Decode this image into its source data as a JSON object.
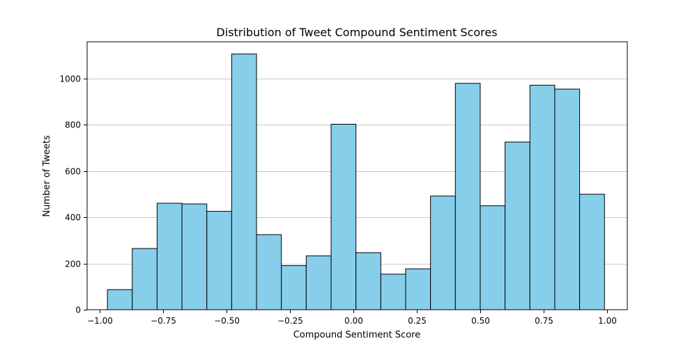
{
  "chart_data": {
    "type": "bar",
    "title": "Distribution of Tweet Compound Sentiment Scores",
    "xlabel": "Compound Sentiment Score",
    "ylabel": "Number of Tweets",
    "xlim": [
      -1.05,
      1.08
    ],
    "ylim": [
      0,
      1160
    ],
    "grid": "y",
    "bar_color": "#87ceeb",
    "edge_color": "#000000",
    "bin_edges": [
      -0.97,
      -0.872,
      -0.774,
      -0.676,
      -0.578,
      -0.48,
      -0.382,
      -0.284,
      -0.186,
      -0.088,
      0.01,
      0.108,
      0.206,
      0.304,
      0.402,
      0.5,
      0.598,
      0.696,
      0.794,
      0.892,
      0.99
    ],
    "values": [
      87,
      265,
      461,
      458,
      426,
      1107,
      325,
      191,
      233,
      803,
      247,
      154,
      177,
      492,
      980,
      450,
      726,
      972,
      955,
      500
    ],
    "xticks": [
      {
        "value": -1.0,
        "label": "−1.00"
      },
      {
        "value": -0.75,
        "label": "−0.75"
      },
      {
        "value": -0.5,
        "label": "−0.50"
      },
      {
        "value": -0.25,
        "label": "−0.25"
      },
      {
        "value": 0.0,
        "label": "0.00"
      },
      {
        "value": 0.25,
        "label": "0.25"
      },
      {
        "value": 0.5,
        "label": "0.50"
      },
      {
        "value": 0.75,
        "label": "0.75"
      },
      {
        "value": 1.0,
        "label": "1.00"
      }
    ],
    "yticks": [
      {
        "value": 0,
        "label": "0"
      },
      {
        "value": 200,
        "label": "200"
      },
      {
        "value": 400,
        "label": "400"
      },
      {
        "value": 600,
        "label": "600"
      },
      {
        "value": 800,
        "label": "800"
      },
      {
        "value": 1000,
        "label": "1000"
      }
    ]
  }
}
